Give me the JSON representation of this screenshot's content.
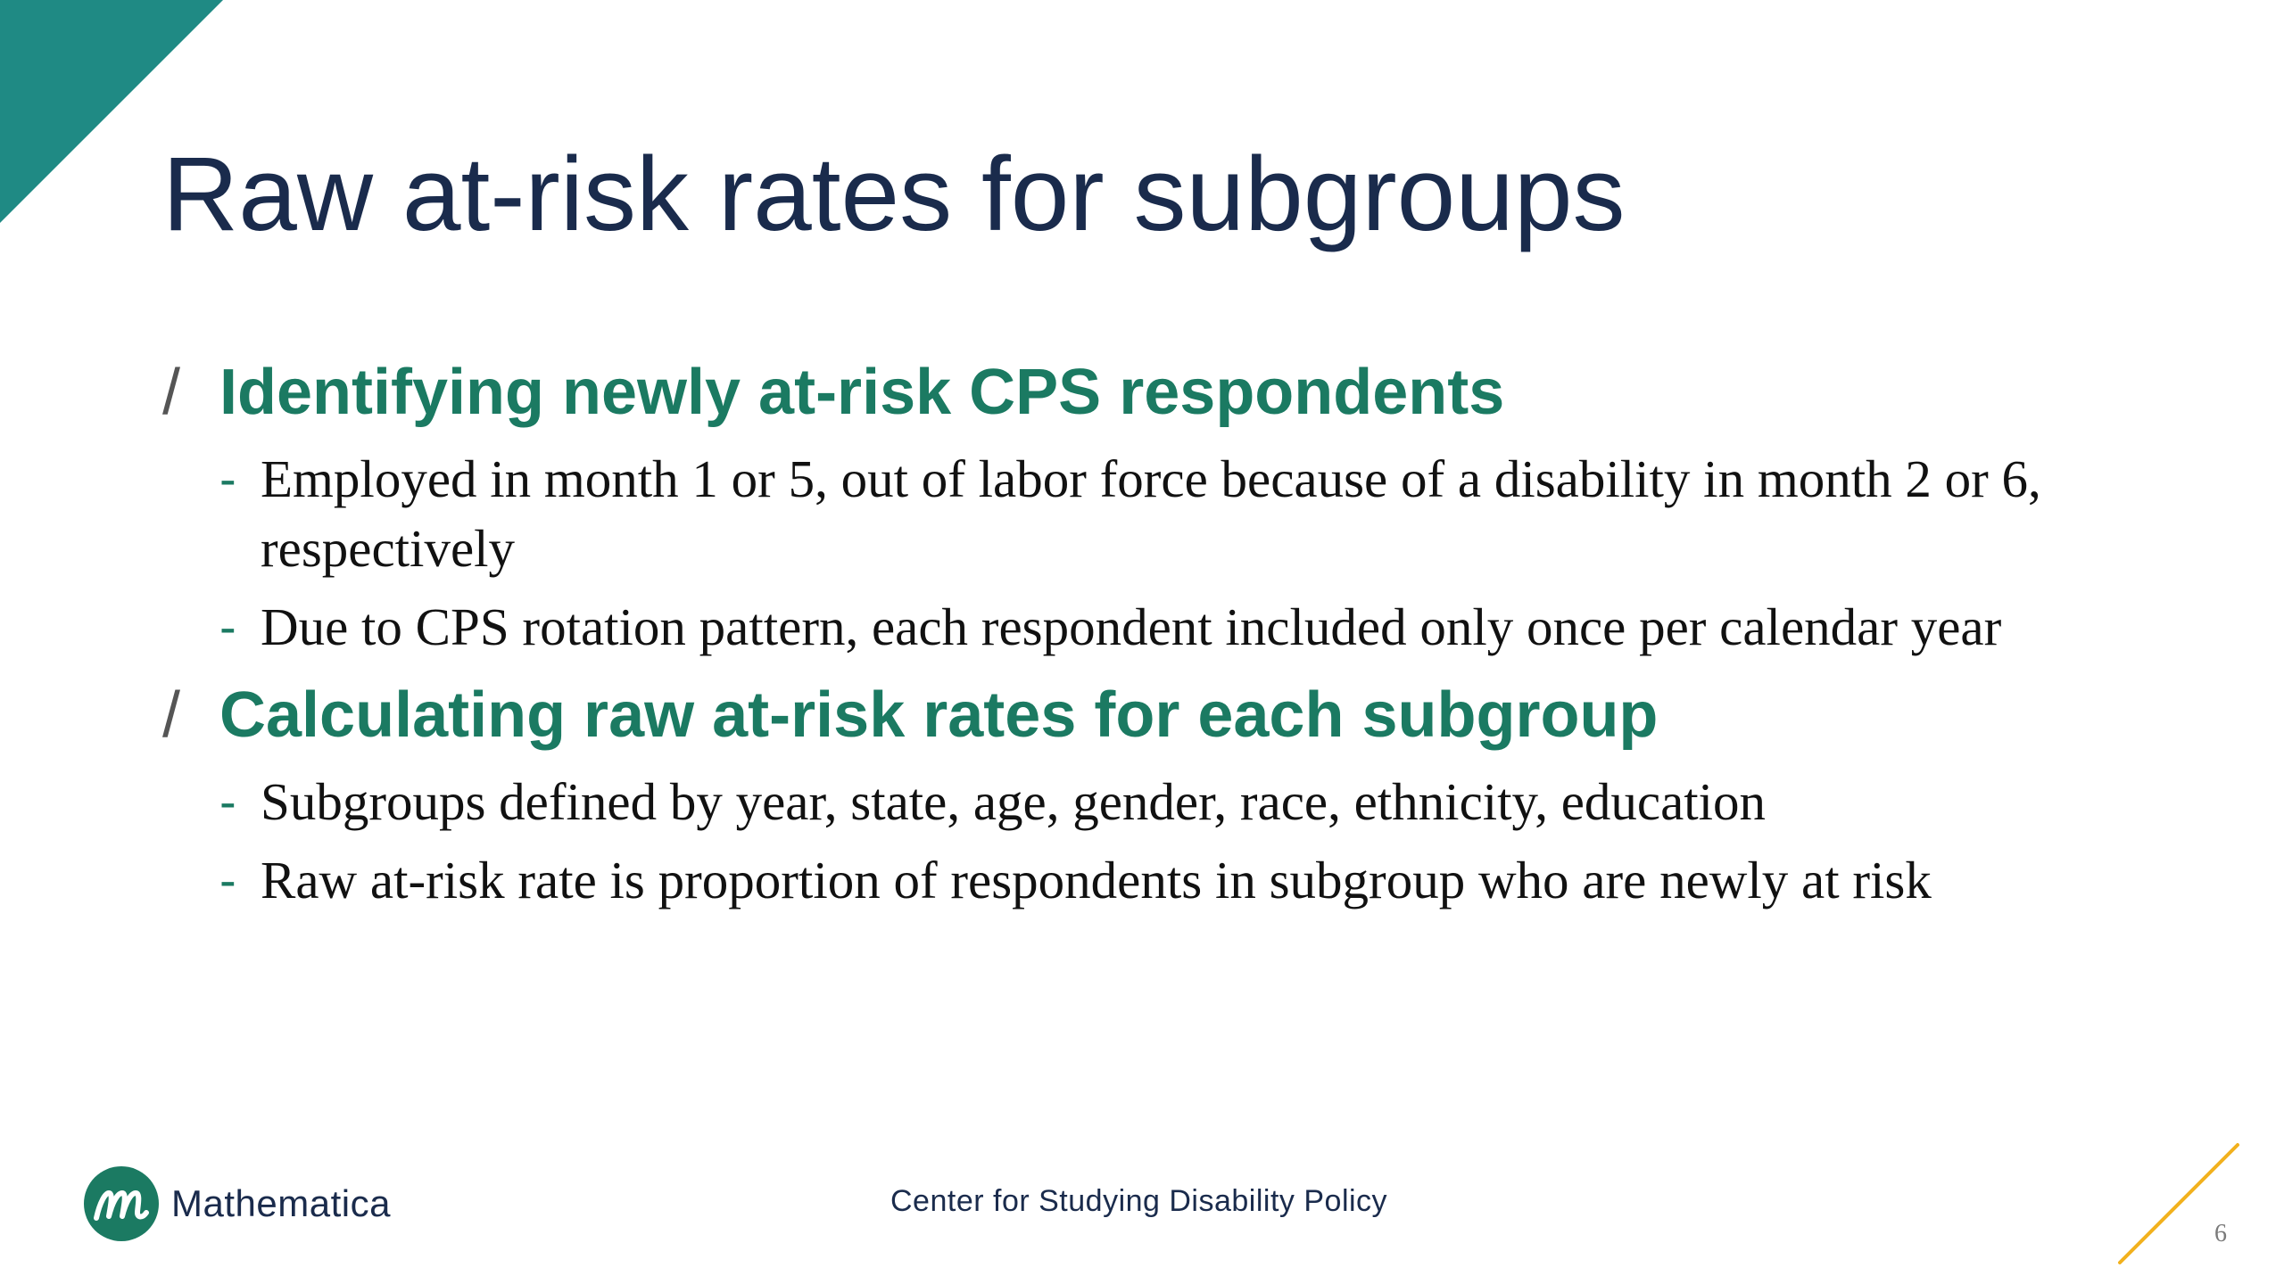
{
  "colors": {
    "accent_teal": "#1f8a84",
    "heading_green": "#1b7a62",
    "title_navy": "#1a2b4c",
    "line_yellow": "#f2b11d"
  },
  "slide": {
    "title": "Raw at-risk rates for subgroups",
    "sections": [
      {
        "marker": "/",
        "heading": "Identifying newly at-risk CPS respondents",
        "bullets": [
          {
            "marker": "-",
            "text": "Employed in month 1 or 5, out of labor force because of a disability in month 2 or 6, respectively"
          },
          {
            "marker": "-",
            "text": "Due to CPS rotation pattern, each respondent included only once per calendar year"
          }
        ]
      },
      {
        "marker": "/",
        "heading": "Calculating raw at-risk rates for each subgroup",
        "bullets": [
          {
            "marker": "-",
            "text": "Subgroups defined by year, state, age, gender, race, ethnicity, education"
          },
          {
            "marker": "-",
            "text": "Raw at-risk rate is proportion of respondents in subgroup who are newly at risk"
          }
        ]
      }
    ]
  },
  "footer": {
    "logo_name": "Mathematica",
    "logo_icon": "mathematica-m-logo-icon",
    "center_text": "Center for Studying Disability Policy",
    "page_number": "6"
  }
}
